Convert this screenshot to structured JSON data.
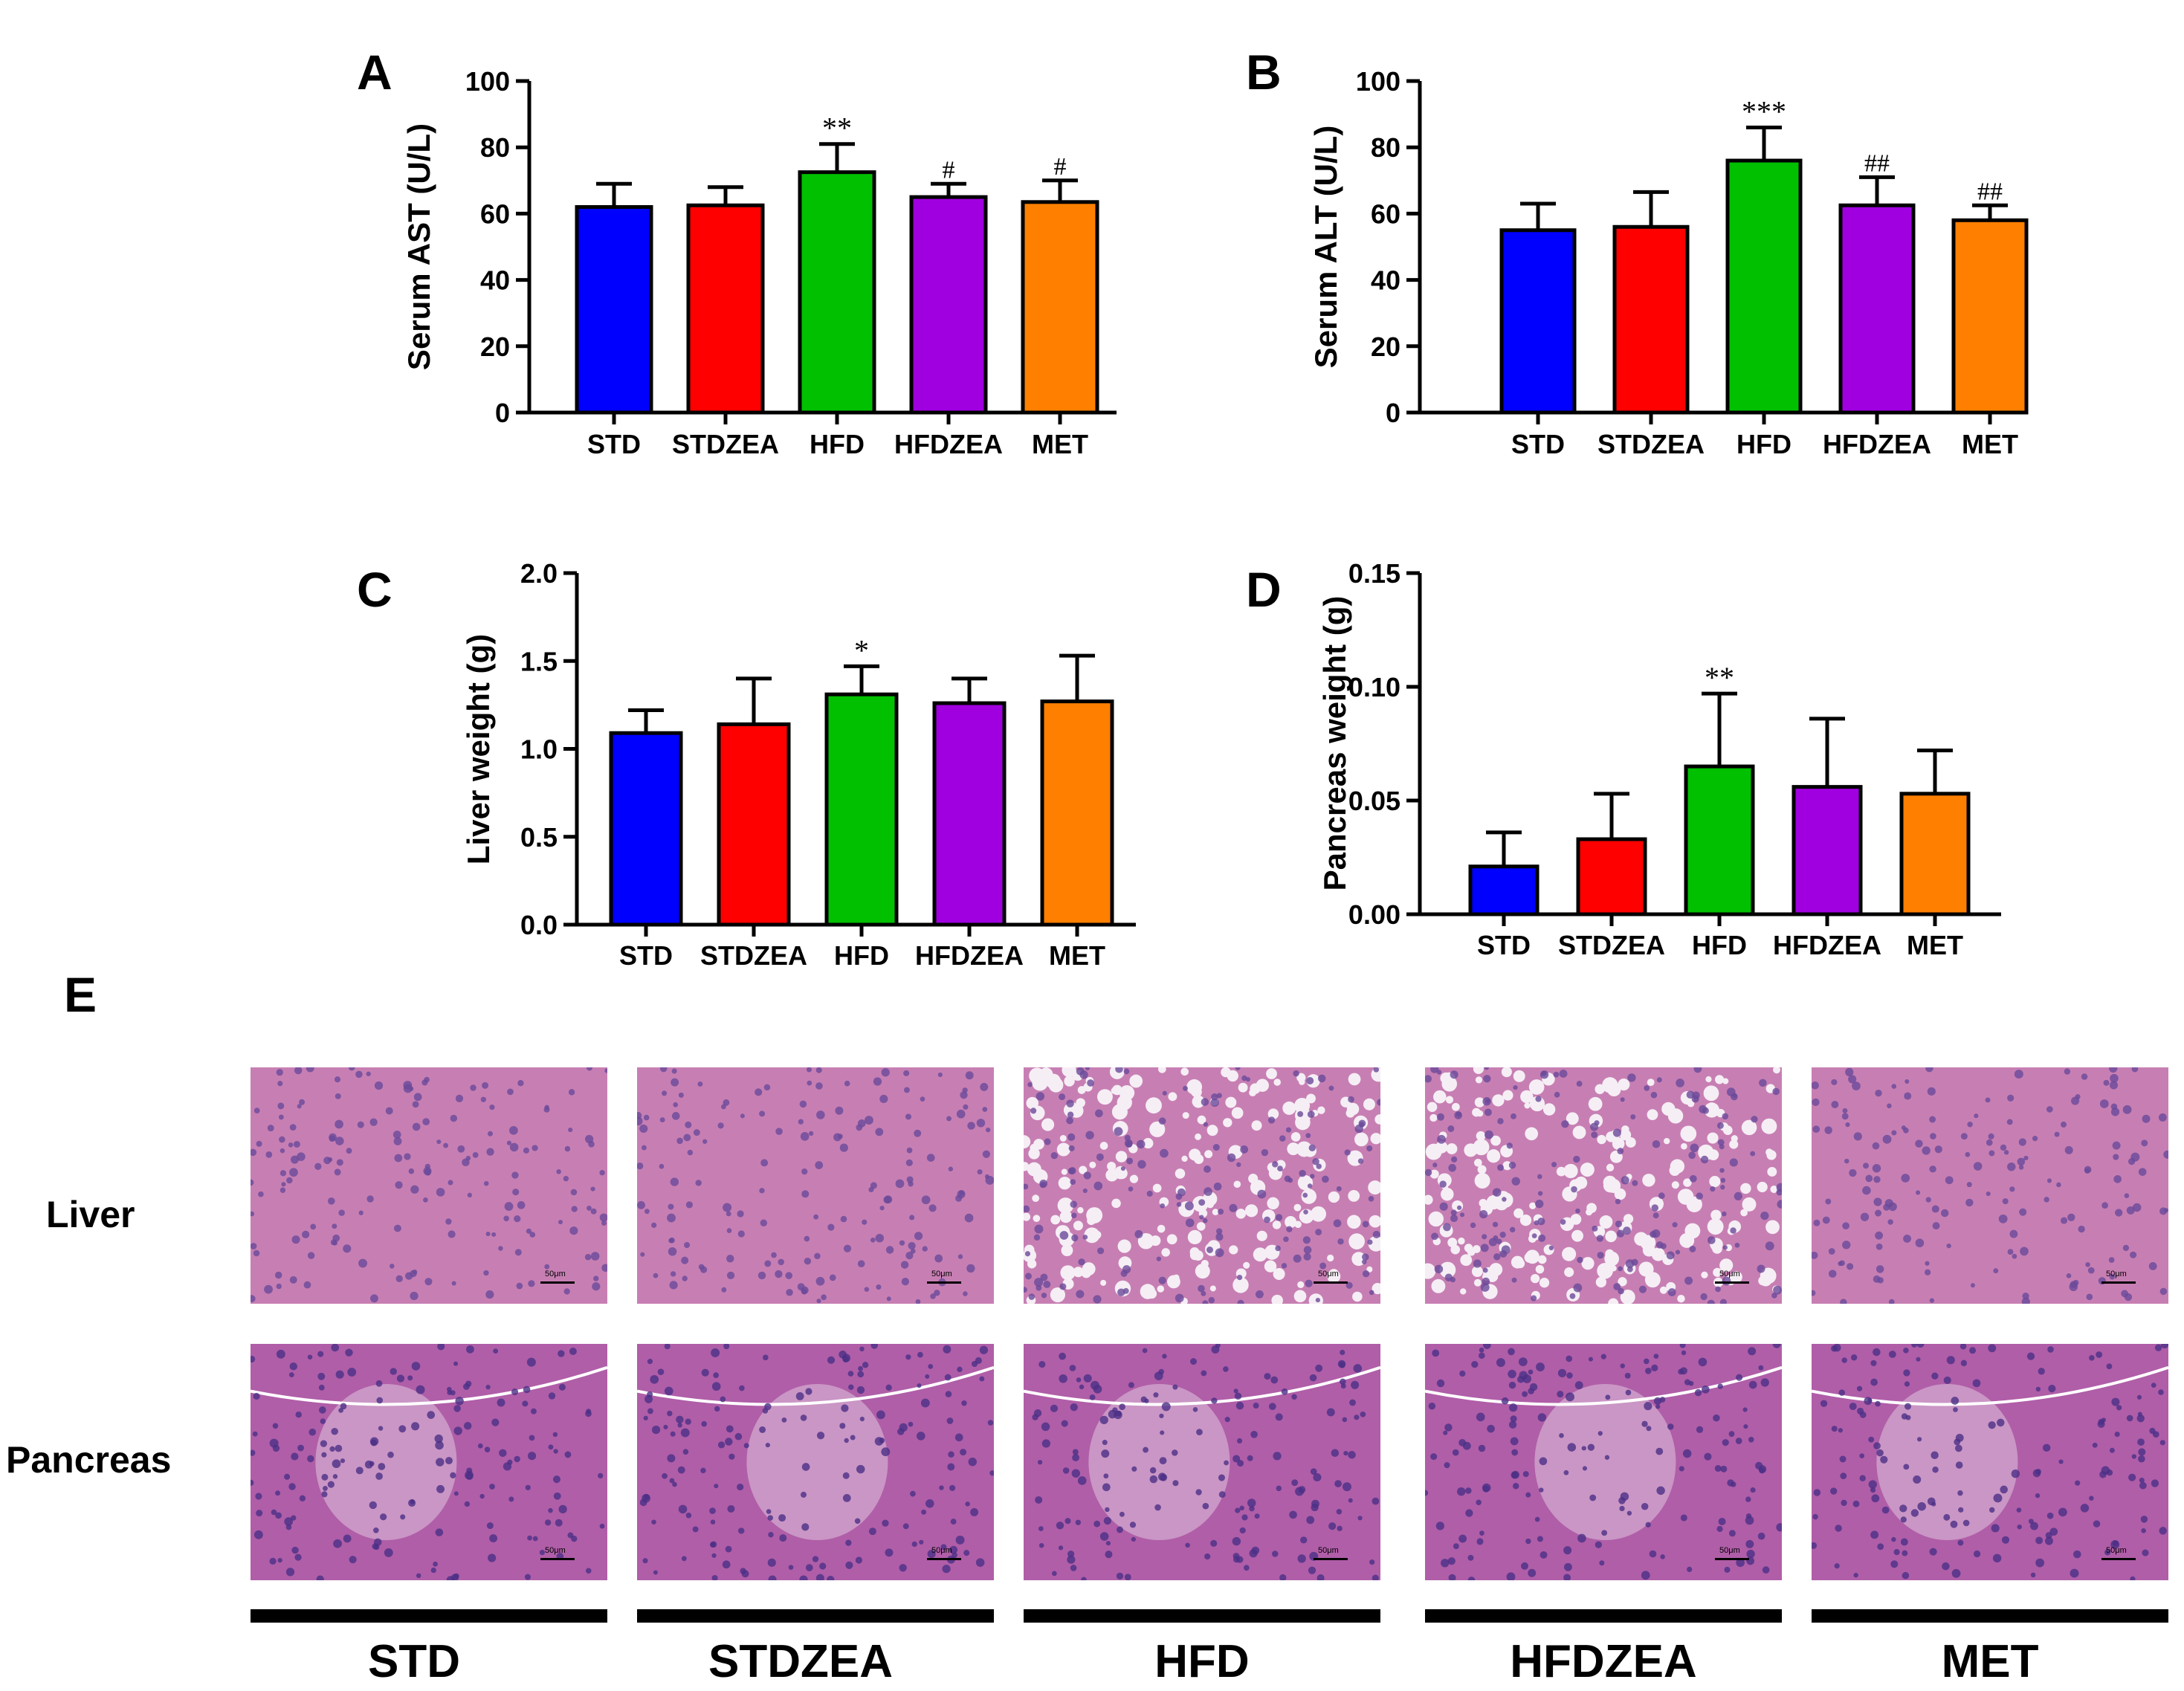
{
  "colors": {
    "STD": "#0000ff",
    "STDZEA": "#ff0000",
    "HFD": "#00c000",
    "HFDZEA": "#a000e0",
    "MET": "#ff8000"
  },
  "chart_data": [
    {
      "panel": "A",
      "type": "bar",
      "ylabel": "Serum AST (U/L)",
      "categories": [
        "STD",
        "STDZEA",
        "HFD",
        "HFDZEA",
        "MET"
      ],
      "values": [
        62,
        62.5,
        72.5,
        65,
        63.5
      ],
      "errors": [
        7,
        5.5,
        8.5,
        4,
        6.5
      ],
      "annotations": [
        "",
        "",
        "**",
        "#",
        "#"
      ],
      "ylim": [
        0,
        100
      ],
      "yticks": [
        "0",
        "20",
        "40",
        "60",
        "80",
        "100"
      ]
    },
    {
      "panel": "B",
      "type": "bar",
      "ylabel": "Serum ALT (U/L)",
      "categories": [
        "STD",
        "STDZEA",
        "HFD",
        "HFDZEA",
        "MET"
      ],
      "values": [
        55,
        56,
        76,
        62.5,
        58
      ],
      "errors": [
        8,
        10.5,
        10,
        8.5,
        4.5
      ],
      "annotations": [
        "",
        "",
        "***",
        "##",
        "##"
      ],
      "ylim": [
        0,
        100
      ],
      "yticks": [
        "0",
        "20",
        "40",
        "60",
        "80",
        "100"
      ]
    },
    {
      "panel": "C",
      "type": "bar",
      "ylabel": "Liver weight (g)",
      "categories": [
        "STD",
        "STDZEA",
        "HFD",
        "HFDZEA",
        "MET"
      ],
      "values": [
        1.09,
        1.14,
        1.31,
        1.26,
        1.27
      ],
      "errors": [
        0.13,
        0.26,
        0.16,
        0.14,
        0.26
      ],
      "annotations": [
        "",
        "",
        "*",
        "",
        ""
      ],
      "ylim": [
        0,
        2
      ],
      "yticks": [
        "0.0",
        "0.5",
        "1.0",
        "1.5",
        "2.0"
      ]
    },
    {
      "panel": "D",
      "type": "bar",
      "ylabel": "Pancreas weight (g)",
      "categories": [
        "STD",
        "STDZEA",
        "HFD",
        "HFDZEA",
        "MET"
      ],
      "values": [
        0.021,
        0.033,
        0.065,
        0.056,
        0.053
      ],
      "errors": [
        0.015,
        0.02,
        0.032,
        0.03,
        0.019
      ],
      "annotations": [
        "",
        "",
        "**",
        "",
        ""
      ],
      "ylim": [
        0,
        0.15
      ],
      "yticks": [
        "0.00",
        "0.05",
        "0.10",
        "0.15"
      ]
    }
  ],
  "panel_e": {
    "label": "E",
    "rows": [
      "Liver",
      "Pancreas"
    ],
    "groups": [
      "STD",
      "STDZEA",
      "HFD",
      "HFDZEA",
      "MET"
    ],
    "scale_text": "50μm"
  }
}
